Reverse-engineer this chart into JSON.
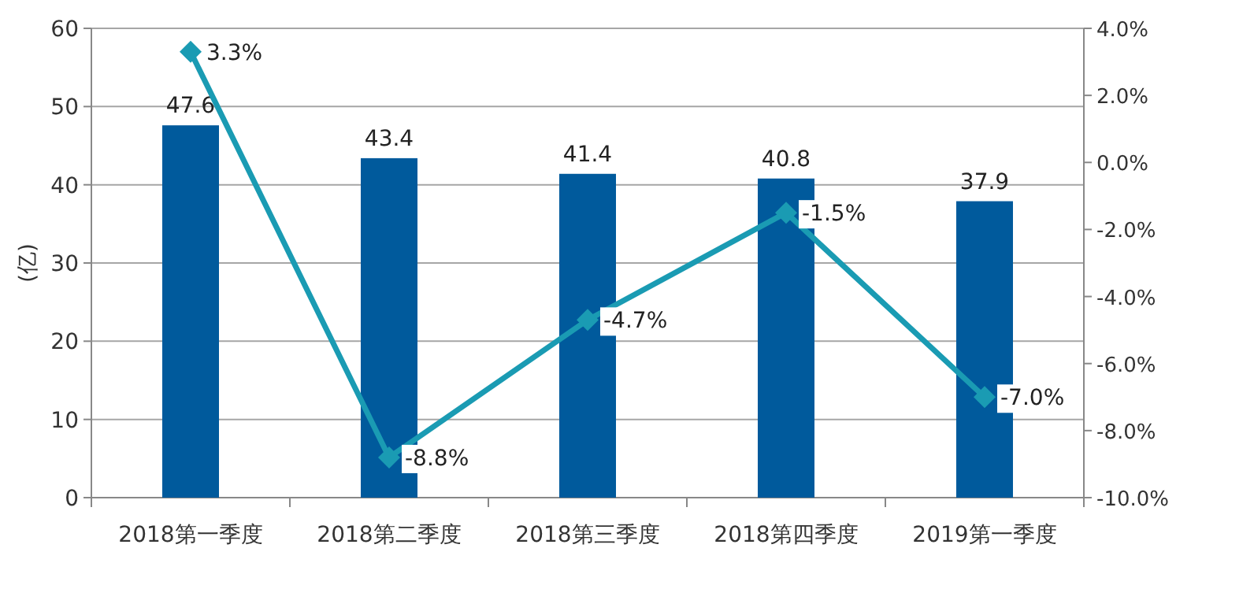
{
  "chart_data": {
    "type": "bar",
    "categories": [
      "2018第一季度",
      "2018第二季度",
      "2018第三季度",
      "2018第四季度",
      "2019第一季度"
    ],
    "ylabel": "(亿)",
    "ylim": [
      0,
      60
    ],
    "yticks": [
      0,
      10,
      20,
      30,
      40,
      50,
      60
    ],
    "y2lim": [
      -10,
      4
    ],
    "y2ticks": [
      {
        "value": -10,
        "label": "-10.0%"
      },
      {
        "value": -8,
        "label": "-8.0%"
      },
      {
        "value": -6,
        "label": "-6.0%"
      },
      {
        "value": -4,
        "label": "-4.0%"
      },
      {
        "value": -2,
        "label": "-2.0%"
      },
      {
        "value": 0,
        "label": "0.0%"
      },
      {
        "value": 2,
        "label": "2.0%"
      },
      {
        "value": 4,
        "label": "4.0%"
      }
    ],
    "grid": "y",
    "series": [
      {
        "color": "#005a9c",
        "values": [
          47.6,
          43.4,
          41.4,
          40.8,
          37.9
        ],
        "value_labels": [
          "47.6",
          "43.4",
          "41.4",
          "40.8",
          "37.9"
        ]
      },
      {
        "type": "line",
        "axis": "y2",
        "color": "#1a9bb3",
        "marker": "diamond",
        "line_style": "solid",
        "values": [
          3.3,
          -8.8,
          -4.7,
          -1.5,
          -7.0
        ],
        "value_labels": [
          "3.3%",
          "-8.8%",
          "-4.7%",
          "-1.5%",
          "-7.0%"
        ]
      }
    ]
  }
}
